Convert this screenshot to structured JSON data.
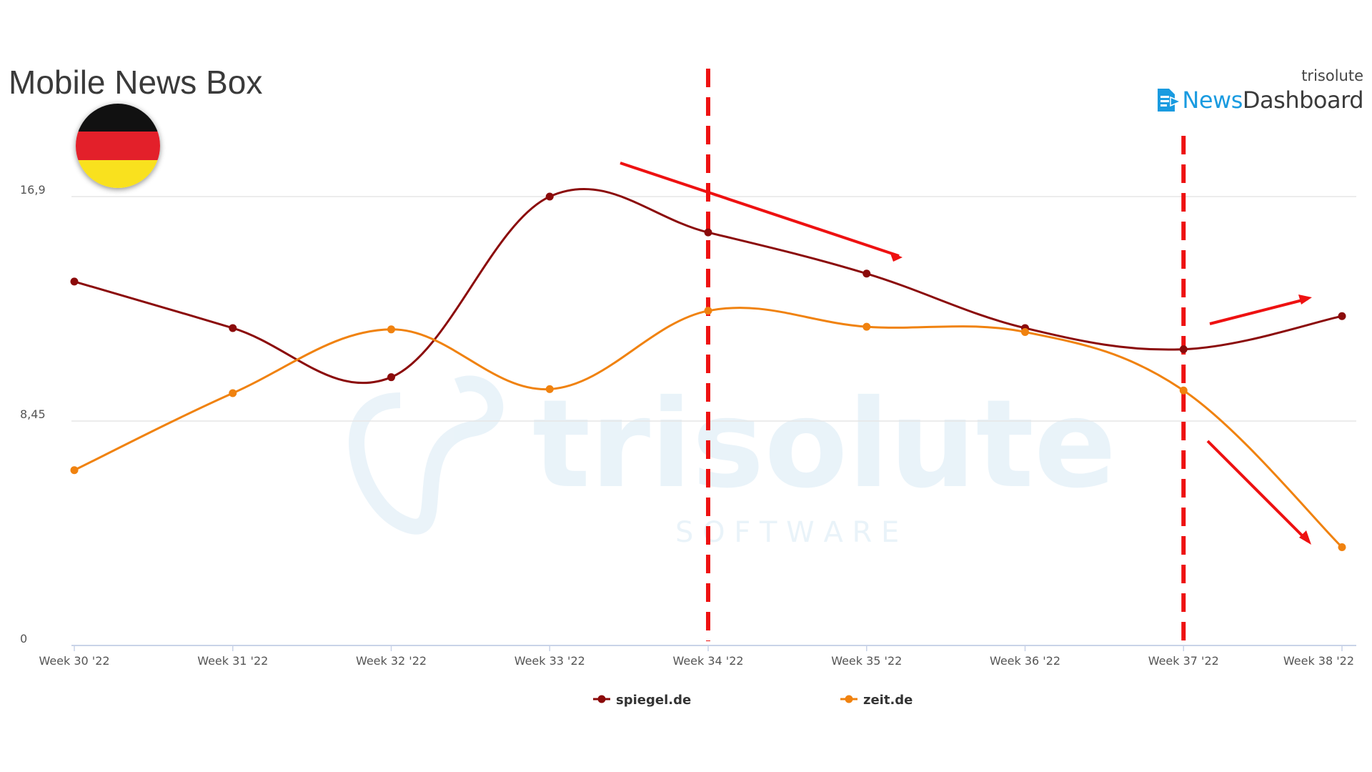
{
  "header": {
    "title": "Mobile News Box",
    "brand_small": "trisolute",
    "brand_news": "News",
    "brand_dashboard": "Dashboard"
  },
  "watermark": {
    "main": "trisolute",
    "sub": "S O F T W A R E"
  },
  "flag_colors": [
    "#111111",
    "#e3202a",
    "#f9e11e"
  ],
  "chart_data": {
    "type": "line",
    "title": "Mobile News Box",
    "categories": [
      "Week 30 '22",
      "Week 31 '22",
      "Week 32 '22",
      "Week 33 '22",
      "Week 34 '22",
      "Week 35 '22",
      "Week 36 '22",
      "Week 37 '22",
      "Week 38 '22"
    ],
    "y_ticks": [
      {
        "value": 0,
        "label": "0"
      },
      {
        "value": 8.45,
        "label": "8,45"
      },
      {
        "value": 16.9,
        "label": "16,9"
      }
    ],
    "ylim": [
      0,
      16.9
    ],
    "grid": true,
    "legend_position": "bottom-center",
    "series": [
      {
        "name": "spiegel.de",
        "color": "#8b0a0a",
        "values": [
          13.7,
          11.95,
          10.1,
          16.9,
          15.55,
          14.0,
          11.95,
          11.15,
          12.4
        ]
      },
      {
        "name": "zeit.de",
        "color": "#f0820f",
        "values": [
          6.6,
          9.5,
          11.9,
          9.65,
          12.6,
          12.0,
          11.8,
          9.6,
          3.7
        ]
      }
    ],
    "annotations": {
      "vertical_markers_at": [
        "Week 34 '22",
        "Week 37 '22"
      ],
      "marker_color": "#ee1111"
    }
  }
}
